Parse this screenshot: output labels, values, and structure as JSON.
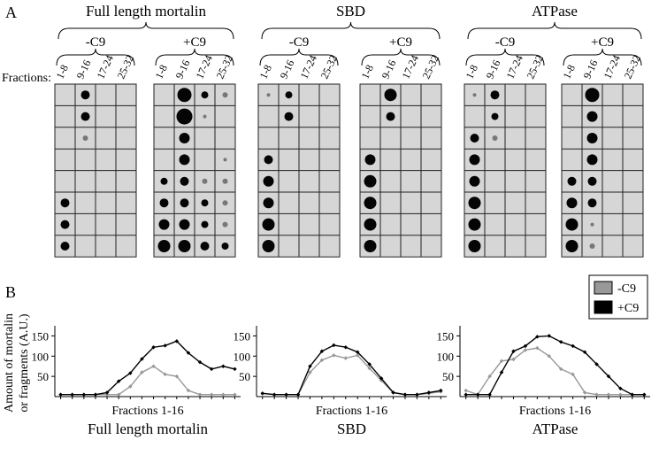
{
  "panel_a": {
    "label": "A",
    "fractions_label": "Fractions:",
    "fraction_labels": [
      "1-8",
      "9-16",
      "17-24",
      "25-32"
    ],
    "groups": [
      {
        "title": "Full length mortalin",
        "conditions": [
          "-C9",
          "+C9"
        ]
      },
      {
        "title": "SBD",
        "conditions": [
          "-C9",
          "+C9"
        ]
      },
      {
        "title": "ATPase",
        "conditions": [
          "-C9",
          "+C9"
        ]
      }
    ]
  },
  "panel_b": {
    "label": "B",
    "y_label_lines": [
      "Amount of mortalin",
      "or fragments (A.U.)"
    ]
  },
  "chart_data": [
    {
      "type": "line",
      "title": "Full length mortalin",
      "x_label": "Fractions 1-16",
      "x": [
        1,
        2,
        3,
        4,
        5,
        6,
        7,
        8,
        9,
        10,
        11,
        12,
        13,
        14,
        15,
        16
      ],
      "xlim": [
        0.5,
        16.5
      ],
      "ylim": [
        0,
        175
      ],
      "yticks": [
        50,
        100,
        150
      ],
      "series": [
        {
          "name": "-C9",
          "color": "#999999",
          "values": [
            5,
            5,
            5,
            5,
            5,
            5,
            25,
            60,
            75,
            55,
            50,
            15,
            5,
            5,
            5,
            5
          ]
        },
        {
          "name": "+C9",
          "color": "#000000",
          "values": [
            5,
            5,
            5,
            5,
            10,
            38,
            58,
            93,
            122,
            126,
            137,
            108,
            85,
            68,
            75,
            68
          ]
        }
      ]
    },
    {
      "type": "line",
      "title": "SBD",
      "x_label": "Fractions 1-16",
      "x": [
        1,
        2,
        3,
        4,
        5,
        6,
        7,
        8,
        9,
        10,
        11,
        12,
        13,
        14,
        15,
        16
      ],
      "xlim": [
        0.5,
        16.5
      ],
      "ylim": [
        0,
        175
      ],
      "yticks": [
        50,
        100,
        150
      ],
      "series": [
        {
          "name": "-C9",
          "color": "#999999",
          "values": [
            8,
            5,
            5,
            5,
            60,
            90,
            102,
            95,
            102,
            70,
            40,
            10,
            5,
            5,
            8,
            12
          ]
        },
        {
          "name": "+C9",
          "color": "#000000",
          "values": [
            8,
            5,
            5,
            5,
            75,
            112,
            127,
            122,
            110,
            80,
            45,
            10,
            5,
            5,
            10,
            15
          ]
        }
      ]
    },
    {
      "type": "line",
      "title": "ATPase",
      "x_label": "Fractions 1-16",
      "x": [
        1,
        2,
        3,
        4,
        5,
        6,
        7,
        8,
        9,
        10,
        11,
        12,
        13,
        14,
        15,
        16
      ],
      "xlim": [
        0.5,
        16.5
      ],
      "ylim": [
        0,
        175
      ],
      "yticks": [
        50,
        100,
        150
      ],
      "series": [
        {
          "name": "-C9",
          "color": "#999999",
          "values": [
            15,
            5,
            50,
            88,
            92,
            115,
            120,
            100,
            68,
            55,
            10,
            5,
            5,
            5,
            5,
            5
          ]
        },
        {
          "name": "+C9",
          "color": "#000000",
          "values": [
            5,
            5,
            5,
            60,
            112,
            125,
            148,
            150,
            135,
            125,
            110,
            80,
            50,
            20,
            5,
            5
          ]
        }
      ]
    }
  ]
}
